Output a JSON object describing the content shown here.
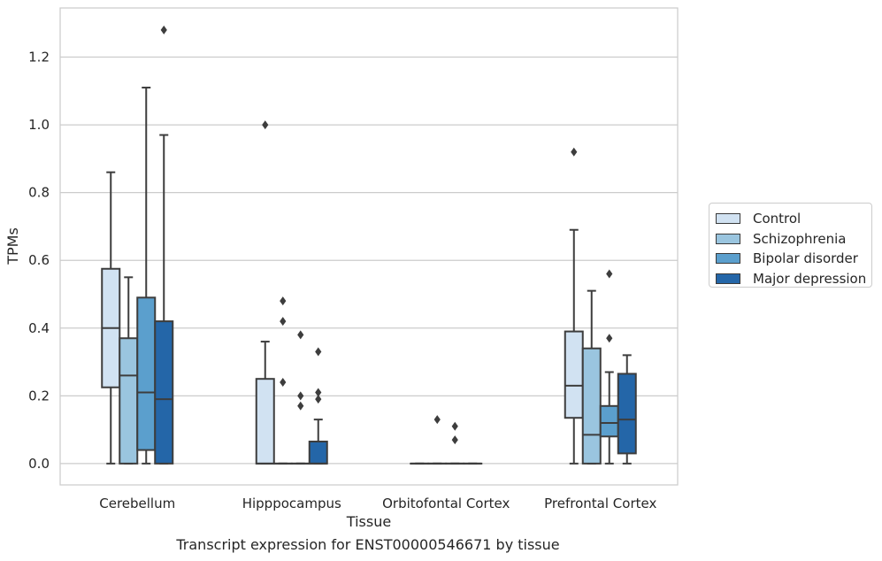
{
  "chart_data": {
    "type": "boxplot",
    "title": "Transcript expression for ENST00000546671 by tissue",
    "xlabel": "Tissue",
    "ylabel": "TPMs",
    "ylim": [
      -0.063,
      1.345
    ],
    "yticks": [
      "0.0",
      "0.2",
      "0.4",
      "0.6",
      "0.8",
      "1.0",
      "1.2"
    ],
    "ytick_values": [
      0.0,
      0.2,
      0.4,
      0.6,
      0.8,
      1.0,
      1.2
    ],
    "categories": [
      "Cerebellum",
      "Hipppocampus",
      "Orbitofontal Cortex",
      "Prefrontal Cortex"
    ],
    "grid": "horizontal",
    "legend_position": "right",
    "series": [
      {
        "name": "Control",
        "color": "#d1e2f2",
        "boxes": [
          {
            "whislo": 0.0,
            "q1": 0.225,
            "med": 0.4,
            "q3": 0.575,
            "whishi": 0.86,
            "fliers": []
          },
          {
            "whislo": 0.0,
            "q1": 0.0,
            "med": 0.0,
            "q3": 0.25,
            "whishi": 0.36,
            "fliers": [
              1.0
            ]
          },
          {
            "whislo": 0.0,
            "q1": 0.0,
            "med": 0.0,
            "q3": 0.0,
            "whishi": 0.0,
            "fliers": []
          },
          {
            "whislo": 0.0,
            "q1": 0.135,
            "med": 0.23,
            "q3": 0.39,
            "whishi": 0.69,
            "fliers": [
              0.92
            ]
          }
        ]
      },
      {
        "name": "Schizophrenia",
        "color": "#9ac5df",
        "boxes": [
          {
            "whislo": 0.0,
            "q1": 0.0,
            "med": 0.26,
            "q3": 0.37,
            "whishi": 0.55,
            "fliers": []
          },
          {
            "whislo": 0.0,
            "q1": 0.0,
            "med": 0.0,
            "q3": 0.0,
            "whishi": 0.0,
            "fliers": [
              0.48,
              0.42,
              0.24
            ]
          },
          {
            "whislo": 0.0,
            "q1": 0.0,
            "med": 0.0,
            "q3": 0.0,
            "whishi": 0.0,
            "fliers": [
              0.13
            ]
          },
          {
            "whislo": 0.0,
            "q1": 0.0,
            "med": 0.085,
            "q3": 0.34,
            "whishi": 0.51,
            "fliers": []
          }
        ]
      },
      {
        "name": "Bipolar disorder",
        "color": "#5b9fcd",
        "boxes": [
          {
            "whislo": 0.0,
            "q1": 0.04,
            "med": 0.21,
            "q3": 0.49,
            "whishi": 1.11,
            "fliers": []
          },
          {
            "whislo": 0.0,
            "q1": 0.0,
            "med": 0.0,
            "q3": 0.0,
            "whishi": 0.0,
            "fliers": [
              0.38,
              0.2,
              0.17
            ]
          },
          {
            "whislo": 0.0,
            "q1": 0.0,
            "med": 0.0,
            "q3": 0.0,
            "whishi": 0.0,
            "fliers": [
              0.11,
              0.07
            ]
          },
          {
            "whislo": 0.0,
            "q1": 0.08,
            "med": 0.12,
            "q3": 0.17,
            "whishi": 0.27,
            "fliers": [
              0.56,
              0.37
            ]
          }
        ]
      },
      {
        "name": "Major depression",
        "color": "#2466a8",
        "boxes": [
          {
            "whislo": 0.0,
            "q1": 0.0,
            "med": 0.19,
            "q3": 0.42,
            "whishi": 0.97,
            "fliers": [
              1.28
            ]
          },
          {
            "whislo": 0.0,
            "q1": 0.0,
            "med": 0.0,
            "q3": 0.065,
            "whishi": 0.13,
            "fliers": [
              0.33,
              0.21,
              0.19
            ]
          },
          {
            "whislo": 0.0,
            "q1": 0.0,
            "med": 0.0,
            "q3": 0.0,
            "whishi": 0.0,
            "fliers": []
          },
          {
            "whislo": 0.0,
            "q1": 0.03,
            "med": 0.13,
            "q3": 0.265,
            "whishi": 0.32,
            "fliers": []
          }
        ]
      }
    ]
  }
}
